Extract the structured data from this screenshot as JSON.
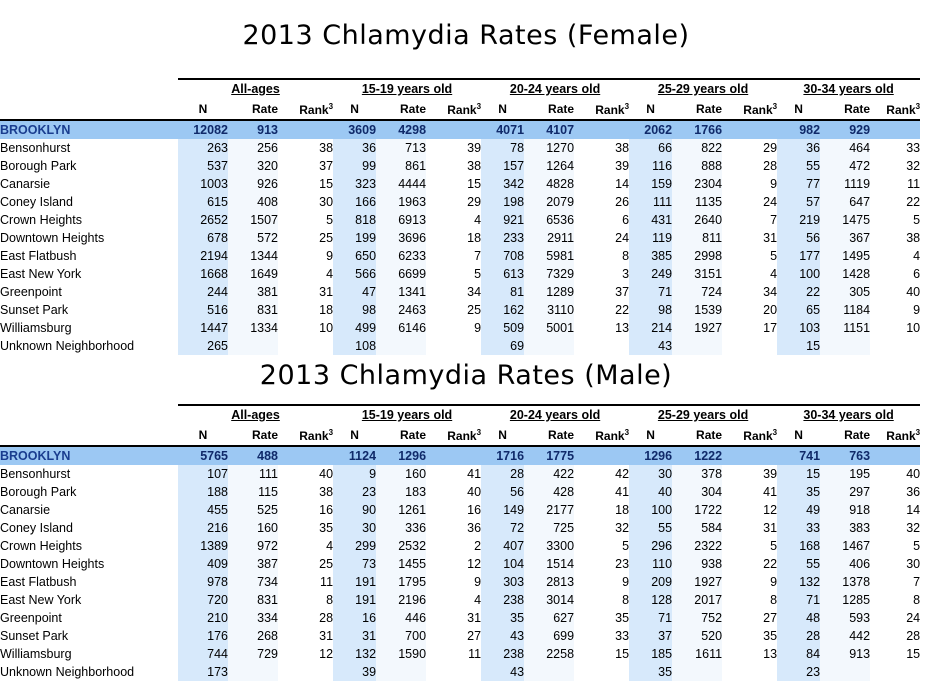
{
  "female": {
    "title": "2013 Chlamydia Rates (Female)",
    "groups": [
      "All-ages",
      "15-19 years old",
      "20-24 years old",
      "25-29 years old",
      "30-34 years old"
    ],
    "sub_labels": {
      "n": "N",
      "rate": "Rate",
      "rank": "Rank",
      "rank_sup": "3"
    },
    "brooklyn": {
      "name": "BROOKLYN",
      "values": [
        "12082",
        "913",
        "",
        "3609",
        "4298",
        "",
        "4071",
        "4107",
        "",
        "2062",
        "1766",
        "",
        "982",
        "929",
        ""
      ]
    },
    "rows": [
      {
        "name": "Bensonhurst",
        "values": [
          "263",
          "256",
          "38",
          "36",
          "713",
          "39",
          "78",
          "1270",
          "38",
          "66",
          "822",
          "29",
          "36",
          "464",
          "33"
        ]
      },
      {
        "name": "Borough Park",
        "values": [
          "537",
          "320",
          "37",
          "99",
          "861",
          "38",
          "157",
          "1264",
          "39",
          "116",
          "888",
          "28",
          "55",
          "472",
          "32"
        ]
      },
      {
        "name": "Canarsie",
        "values": [
          "1003",
          "926",
          "15",
          "323",
          "4444",
          "15",
          "342",
          "4828",
          "14",
          "159",
          "2304",
          "9",
          "77",
          "1119",
          "11"
        ]
      },
      {
        "name": "Coney Island",
        "values": [
          "615",
          "408",
          "30",
          "166",
          "1963",
          "29",
          "198",
          "2079",
          "26",
          "111",
          "1135",
          "24",
          "57",
          "647",
          "22"
        ]
      },
      {
        "name": "Crown Heights",
        "values": [
          "2652",
          "1507",
          "5",
          "818",
          "6913",
          "4",
          "921",
          "6536",
          "6",
          "431",
          "2640",
          "7",
          "219",
          "1475",
          "5"
        ]
      },
      {
        "name": "Downtown Heights",
        "values": [
          "678",
          "572",
          "25",
          "199",
          "3696",
          "18",
          "233",
          "2911",
          "24",
          "119",
          "811",
          "31",
          "56",
          "367",
          "38"
        ]
      },
      {
        "name": "East Flatbush",
        "values": [
          "2194",
          "1344",
          "9",
          "650",
          "6233",
          "7",
          "708",
          "5981",
          "8",
          "385",
          "2998",
          "5",
          "177",
          "1495",
          "4"
        ]
      },
      {
        "name": "East New York",
        "values": [
          "1668",
          "1649",
          "4",
          "566",
          "6699",
          "5",
          "613",
          "7329",
          "3",
          "249",
          "3151",
          "4",
          "100",
          "1428",
          "6"
        ]
      },
      {
        "name": "Greenpoint",
        "values": [
          "244",
          "381",
          "31",
          "47",
          "1341",
          "34",
          "81",
          "1289",
          "37",
          "71",
          "724",
          "34",
          "22",
          "305",
          "40"
        ]
      },
      {
        "name": "Sunset Park",
        "values": [
          "516",
          "831",
          "18",
          "98",
          "2463",
          "25",
          "162",
          "3110",
          "22",
          "98",
          "1539",
          "20",
          "65",
          "1184",
          "9"
        ]
      },
      {
        "name": "Williamsburg",
        "values": [
          "1447",
          "1334",
          "10",
          "499",
          "6146",
          "9",
          "509",
          "5001",
          "13",
          "214",
          "1927",
          "17",
          "103",
          "1151",
          "10"
        ]
      },
      {
        "name": "Unknown Neighborhood",
        "values": [
          "265",
          "",
          "",
          "108",
          "",
          "",
          "69",
          "",
          "",
          "43",
          "",
          "",
          "15",
          "",
          ""
        ]
      }
    ]
  },
  "male": {
    "title": "2013 Chlamydia Rates (Male)",
    "groups": [
      "All-ages",
      "15-19 years old",
      "20-24 years old",
      "25-29 years old",
      "30-34 years old"
    ],
    "sub_labels": {
      "n": "N",
      "rate": "Rate",
      "rank": "Rank",
      "rank_sup": "3"
    },
    "brooklyn": {
      "name": "BROOKLYN",
      "values": [
        "5765",
        "488",
        "",
        "1124",
        "1296",
        "",
        "1716",
        "1775",
        "",
        "1296",
        "1222",
        "",
        "741",
        "763",
        ""
      ]
    },
    "rows": [
      {
        "name": "Bensonhurst",
        "values": [
          "107",
          "111",
          "40",
          "9",
          "160",
          "41",
          "28",
          "422",
          "42",
          "30",
          "378",
          "39",
          "15",
          "195",
          "40"
        ]
      },
      {
        "name": "Borough Park",
        "values": [
          "188",
          "115",
          "38",
          "23",
          "183",
          "40",
          "56",
          "428",
          "41",
          "40",
          "304",
          "41",
          "35",
          "297",
          "36"
        ]
      },
      {
        "name": "Canarsie",
        "values": [
          "455",
          "525",
          "16",
          "90",
          "1261",
          "16",
          "149",
          "2177",
          "18",
          "100",
          "1722",
          "12",
          "49",
          "918",
          "14"
        ]
      },
      {
        "name": "Coney Island",
        "values": [
          "216",
          "160",
          "35",
          "30",
          "336",
          "36",
          "72",
          "725",
          "32",
          "55",
          "584",
          "31",
          "33",
          "383",
          "32"
        ]
      },
      {
        "name": "Crown Heights",
        "values": [
          "1389",
          "972",
          "4",
          "299",
          "2532",
          "2",
          "407",
          "3300",
          "5",
          "296",
          "2322",
          "5",
          "168",
          "1467",
          "5"
        ]
      },
      {
        "name": "Downtown Heights",
        "values": [
          "409",
          "387",
          "25",
          "73",
          "1455",
          "12",
          "104",
          "1514",
          "23",
          "110",
          "938",
          "22",
          "55",
          "406",
          "30"
        ]
      },
      {
        "name": "East Flatbush",
        "values": [
          "978",
          "734",
          "11",
          "191",
          "1795",
          "9",
          "303",
          "2813",
          "9",
          "209",
          "1927",
          "9",
          "132",
          "1378",
          "7"
        ]
      },
      {
        "name": "East New York",
        "values": [
          "720",
          "831",
          "8",
          "191",
          "2196",
          "4",
          "238",
          "3014",
          "8",
          "128",
          "2017",
          "8",
          "71",
          "1285",
          "8"
        ]
      },
      {
        "name": "Greenpoint",
        "values": [
          "210",
          "334",
          "28",
          "16",
          "446",
          "31",
          "35",
          "627",
          "35",
          "71",
          "752",
          "27",
          "48",
          "593",
          "24"
        ]
      },
      {
        "name": "Sunset Park",
        "values": [
          "176",
          "268",
          "31",
          "31",
          "700",
          "27",
          "43",
          "699",
          "33",
          "37",
          "520",
          "35",
          "28",
          "442",
          "28"
        ]
      },
      {
        "name": "Williamsburg",
        "values": [
          "744",
          "729",
          "12",
          "132",
          "1590",
          "11",
          "238",
          "2258",
          "15",
          "185",
          "1611",
          "13",
          "84",
          "913",
          "15"
        ]
      },
      {
        "name": "Unknown Neighborhood",
        "values": [
          "173",
          "",
          "",
          "39",
          "",
          "",
          "43",
          "",
          "",
          "35",
          "",
          "",
          "23",
          "",
          ""
        ]
      }
    ]
  }
}
